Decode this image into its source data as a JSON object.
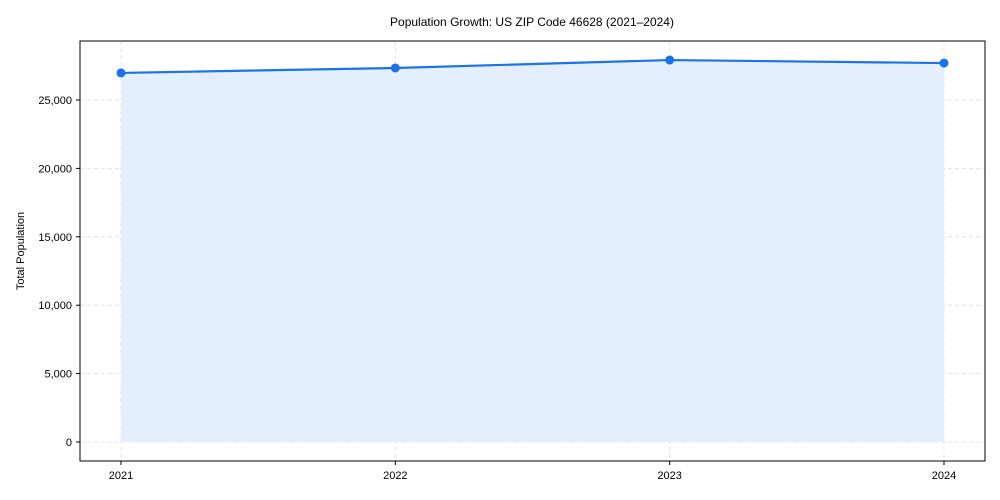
{
  "chart_data": {
    "type": "line",
    "title": "Population Growth: US ZIP Code 46628 (2021–2024)",
    "xlabel": "",
    "ylabel": "Total Population",
    "categories": [
      "2021",
      "2022",
      "2023",
      "2024"
    ],
    "series": [
      {
        "name": "Total Population",
        "values": [
          26980,
          27340,
          27920,
          27700
        ],
        "color": "#1a73e8",
        "fill": "#e3eefd"
      }
    ],
    "ylim": [
      -1400,
      29300
    ],
    "yticks": [
      0,
      5000,
      10000,
      15000,
      20000,
      25000
    ],
    "ytick_labels": [
      "0",
      "5,000",
      "10,000",
      "15,000",
      "20,000",
      "25,000"
    ],
    "grid": true,
    "legend": null
  }
}
